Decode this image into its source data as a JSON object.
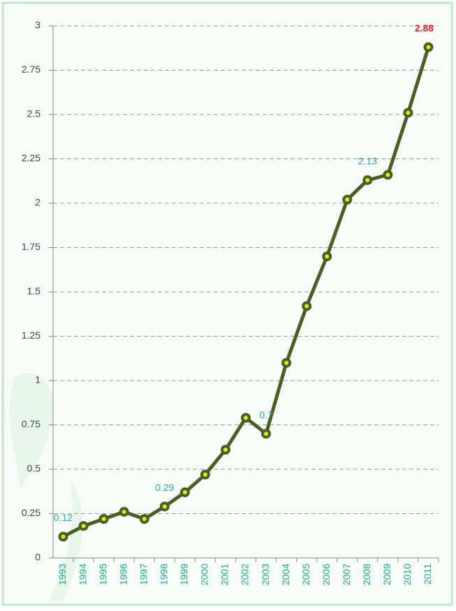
{
  "chart_data": {
    "type": "line",
    "categories": [
      "1993",
      "1994",
      "1995",
      "1996",
      "1997",
      "1998",
      "1999",
      "2000",
      "2001",
      "2002",
      "2003",
      "2004",
      "2005",
      "2006",
      "2007",
      "2008",
      "2009",
      "2010",
      "2011"
    ],
    "series": [
      {
        "color": "#4b5f22",
        "values": [
          0.12,
          0.18,
          0.22,
          0.26,
          0.22,
          0.29,
          0.37,
          0.47,
          0.61,
          0.79,
          0.7,
          1.1,
          1.42,
          1.7,
          2.02,
          2.13,
          2.16,
          2.51,
          2.88
        ],
        "value_labels": [
          "0.12",
          null,
          null,
          null,
          null,
          "0.29",
          null,
          null,
          null,
          null,
          "0.7",
          null,
          null,
          null,
          null,
          "2.13",
          null,
          null,
          "2.88"
        ]
      }
    ],
    "ylim": [
      0,
      3
    ],
    "yticks": [
      0,
      0.25,
      0.5,
      0.75,
      1,
      1.25,
      1.5,
      1.75,
      2,
      2.25,
      2.5,
      2.75,
      3
    ],
    "grid": true,
    "marker_center_color": "#e6e619",
    "label_color": "#2aa898",
    "highlight_label_color": "#e3202a",
    "category_color": "#1fa98c"
  }
}
